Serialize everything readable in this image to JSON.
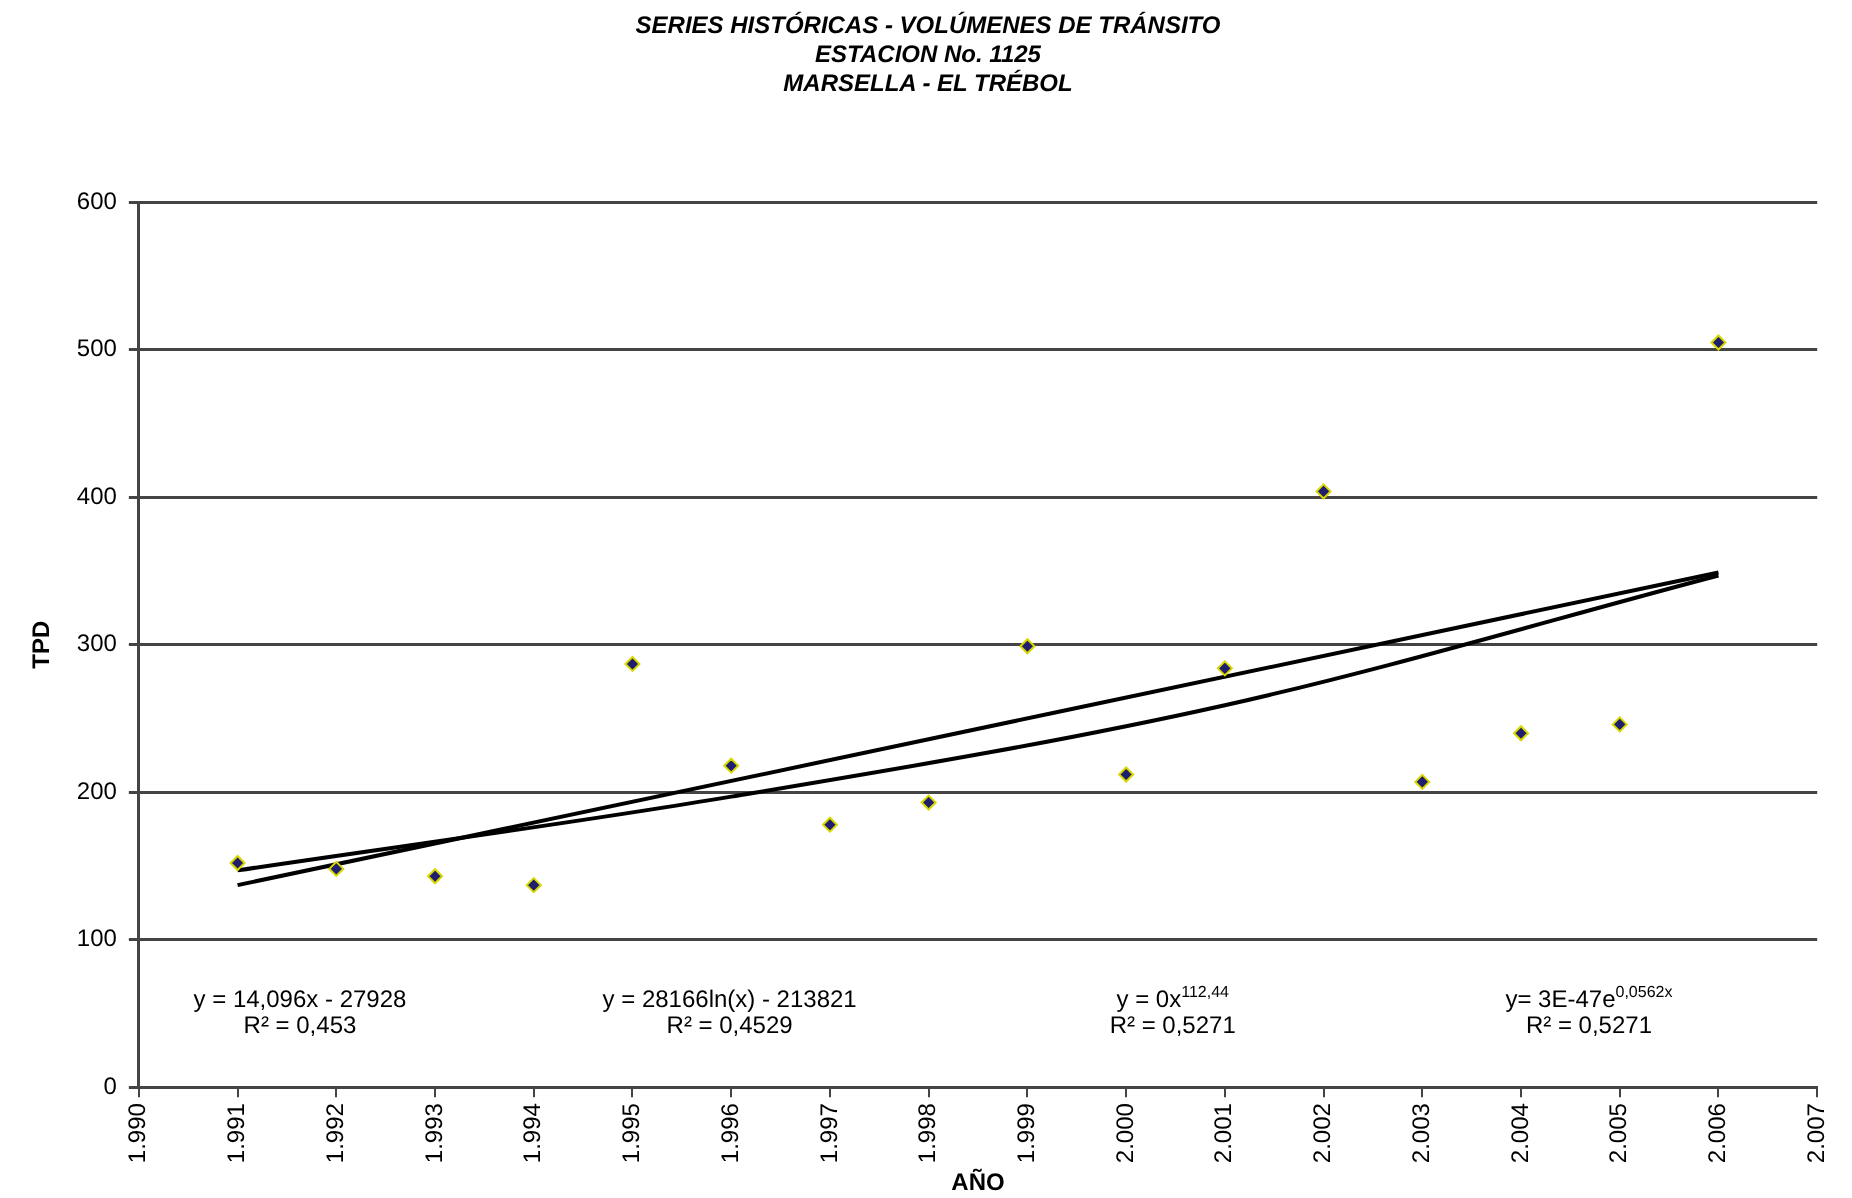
{
  "chart_data": {
    "type": "scatter",
    "title": "SERIES HISTÓRICAS - VOLÚMENES DE TRÁNSITO\nESTACION No. 1125\nMARSELLA - EL TRÉBOL",
    "xlabel": "AÑO",
    "ylabel": "TPD",
    "x": [
      1991,
      1992,
      1993,
      1994,
      1995,
      1996,
      1997,
      1998,
      1999,
      2000,
      2001,
      2002,
      2003,
      2004,
      2005,
      2006
    ],
    "series": [
      {
        "color": "#1f1f6e",
        "values": [
          152,
          148,
          143,
          137,
          287,
          218,
          178,
          193,
          299,
          212,
          284,
          404,
          207,
          240,
          246,
          505
        ]
      },
      {
        "type": "line",
        "marker": "none",
        "color": "#000000",
        "x": [
          1991,
          2006
        ],
        "values": [
          137,
          349
        ]
      },
      {
        "type": "line",
        "marker": "none",
        "color": "#000000",
        "x": [
          1991,
          1996,
          2001,
          2006
        ],
        "values": [
          147,
          197,
          259,
          347
        ]
      }
    ],
    "xlim": [
      1990,
      2007
    ],
    "xticks": [
      {
        "value": 1990,
        "label": "1.990"
      },
      {
        "value": 1991,
        "label": "1.991"
      },
      {
        "value": 1992,
        "label": "1.992"
      },
      {
        "value": 1993,
        "label": "1.993"
      },
      {
        "value": 1994,
        "label": "1.994"
      },
      {
        "value": 1995,
        "label": "1.995"
      },
      {
        "value": 1996,
        "label": "1.996"
      },
      {
        "value": 1997,
        "label": "1.997"
      },
      {
        "value": 1998,
        "label": "1.998"
      },
      {
        "value": 1999,
        "label": "1.999"
      },
      {
        "value": 2000,
        "label": "2.000"
      },
      {
        "value": 2001,
        "label": "2.001"
      },
      {
        "value": 2002,
        "label": "2.002"
      },
      {
        "value": 2003,
        "label": "2.003"
      },
      {
        "value": 2004,
        "label": "2.004"
      },
      {
        "value": 2005,
        "label": "2.005"
      },
      {
        "value": 2006,
        "label": "2.006"
      },
      {
        "value": 2007,
        "label": "2.007"
      }
    ],
    "ylim": [
      0,
      600
    ],
    "yticks": [
      0,
      100,
      200,
      300,
      400,
      500,
      600
    ],
    "grid": "y",
    "legend": false,
    "marker": "diamond",
    "line_style": "solid",
    "annotations": [
      "y = 14,096x - 27928\nR² = 0,453",
      "y = 28166ln(x) - 213821\nR² = 0,4529",
      "y = 0x$^{112,44}$\nR² = 0,5271",
      "y= 3E-47e$^{0,0562x}$\nR² = 0,5271"
    ]
  }
}
